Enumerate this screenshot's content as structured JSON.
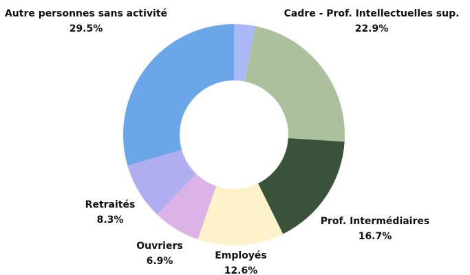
{
  "chart_data": {
    "type": "donut",
    "categories": [
      null,
      "Cadre - Prof. Intellectuelles sup.",
      "Prof. Intermédiaires",
      "Employés",
      "Ouvriers",
      "Retraités",
      "Autre personnes sans activité"
    ],
    "values": [
      3.1,
      22.9,
      16.7,
      12.6,
      6.9,
      8.3,
      29.5
    ],
    "value_labels": [
      null,
      "22.9%",
      "16.7%",
      "12.6%",
      "6.9%",
      "8.3%",
      "29.5%"
    ],
    "colors": [
      "#a9b8f5",
      "#abc09d",
      "#3b523a",
      "#fdf2c8",
      "#dcb3e6",
      "#b0aef0",
      "#6aa6e8"
    ]
  }
}
